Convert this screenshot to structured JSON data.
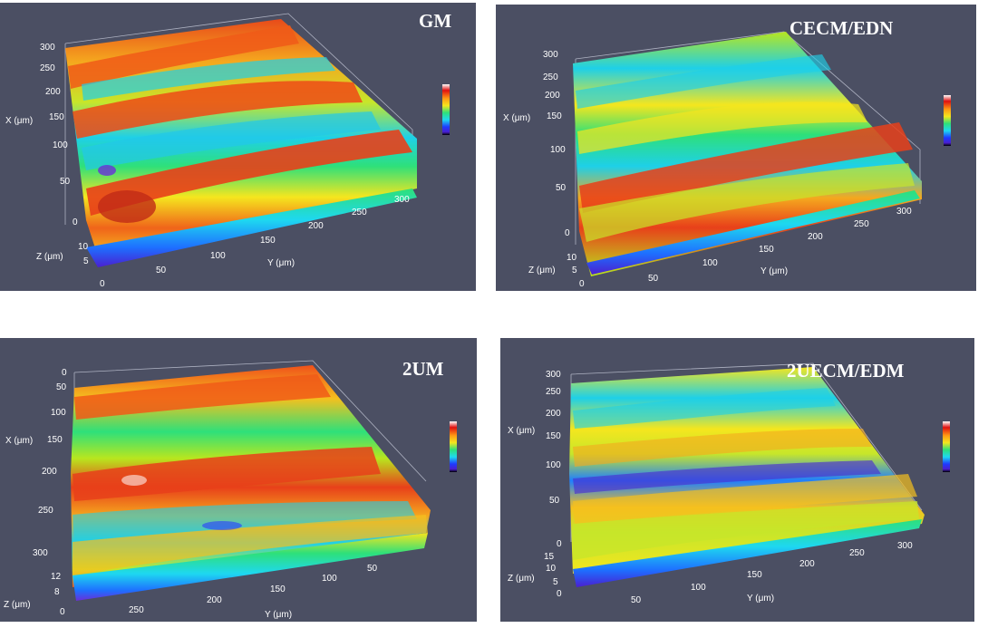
{
  "panels": [
    {
      "title": "GM",
      "x_axis": {
        "label": "X (μm)",
        "ticks": [
          "300",
          "250",
          "200",
          "150",
          "100",
          "50",
          "0"
        ]
      },
      "y_axis": {
        "label": "Y (μm)",
        "ticks": [
          "50",
          "100",
          "150",
          "200",
          "250",
          "300"
        ]
      },
      "z_axis": {
        "label": "Z (μm)",
        "ticks": [
          "10",
          "5",
          "0"
        ]
      }
    },
    {
      "title": "CECM/EDN",
      "x_axis": {
        "label": "X (μm)",
        "ticks": [
          "300",
          "250",
          "200",
          "150",
          "100",
          "50",
          "0"
        ]
      },
      "y_axis": {
        "label": "Y (μm)",
        "ticks": [
          "50",
          "100",
          "150",
          "200",
          "250",
          "300"
        ]
      },
      "z_axis": {
        "label": "Z (μm)",
        "ticks": [
          "10",
          "5",
          "0"
        ]
      }
    },
    {
      "title": "2UM",
      "x_axis": {
        "label": "X (μm)",
        "ticks": [
          "0",
          "50",
          "100",
          "150",
          "200",
          "250",
          "300"
        ]
      },
      "y_axis": {
        "label": "Y (μm)",
        "ticks": [
          "250",
          "200",
          "150",
          "100",
          "50"
        ]
      },
      "z_axis": {
        "label": "Z (μm)",
        "ticks": [
          "12",
          "8",
          "0"
        ]
      }
    },
    {
      "title": "2UECM/EDM",
      "x_axis": {
        "label": "X (μm)",
        "ticks": [
          "300",
          "250",
          "200",
          "150",
          "100",
          "50",
          "0"
        ]
      },
      "y_axis": {
        "label": "Y (μm)",
        "ticks": [
          "50",
          "100",
          "150",
          "200",
          "250",
          "300"
        ]
      },
      "z_axis": {
        "label": "Z (μm)",
        "ticks": [
          "15",
          "10",
          "5",
          "0"
        ]
      }
    }
  ],
  "colors": {
    "background": "#4b4f63",
    "surface_scale": [
      "#1a0a5a",
      "#4a1fd0",
      "#1e6fff",
      "#1ed8f0",
      "#2ee07a",
      "#b8e61e",
      "#f5e61e",
      "#ff9a14",
      "#f03214",
      "#c01010",
      "#ffffff"
    ]
  }
}
